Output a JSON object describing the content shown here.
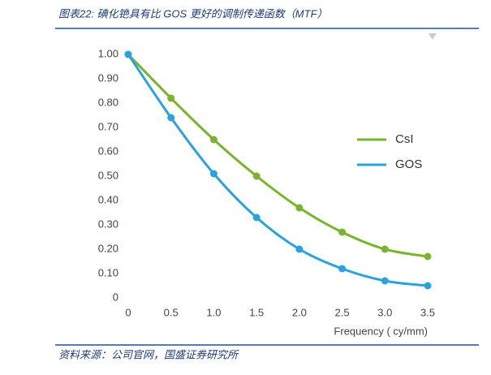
{
  "header": {
    "title": "图表22:  碘化铯具有比 GOS 更好的调制传递函数（MTF）"
  },
  "chart_data": {
    "type": "line",
    "x": [
      0,
      0.5,
      1,
      1.5,
      2,
      2.5,
      3,
      3.5
    ],
    "series": [
      {
        "name": "CsI",
        "color": "#7ab32e",
        "values": [
          1.0,
          0.82,
          0.65,
          0.5,
          0.37,
          0.27,
          0.2,
          0.17
        ]
      },
      {
        "name": "GOS",
        "color": "#29a3dc",
        "values": [
          1.0,
          0.74,
          0.51,
          0.33,
          0.2,
          0.12,
          0.07,
          0.05
        ]
      }
    ],
    "x_label": "Frequency ( cy/mm)",
    "xlim": [
      0,
      3.5
    ],
    "xticks": [
      0,
      0.5,
      {
        "value": 1,
        "label": "1.0"
      },
      1.5,
      {
        "value": 2,
        "label": "2.0"
      },
      2.5,
      {
        "value": 3,
        "label": "3.0"
      },
      3.5
    ],
    "ylim": [
      0,
      1
    ],
    "yticks": [
      0,
      {
        "value": 0.1,
        "label": "0.10"
      },
      {
        "value": 0.2,
        "label": "0.20"
      },
      {
        "value": 0.3,
        "label": "0.30"
      },
      {
        "value": 0.4,
        "label": "0.40"
      },
      {
        "value": 0.5,
        "label": "0.50"
      },
      {
        "value": 0.6,
        "label": "0.60"
      },
      {
        "value": 0.7,
        "label": "0.70"
      },
      {
        "value": 0.8,
        "label": "0.80"
      },
      {
        "value": 0.9,
        "label": "0.90"
      },
      {
        "value": 1,
        "label": "1.00"
      }
    ],
    "grid": false,
    "legend": "right",
    "smooth": true
  },
  "footer": {
    "source": "资料来源：公司官网，国盛证券研究所"
  }
}
